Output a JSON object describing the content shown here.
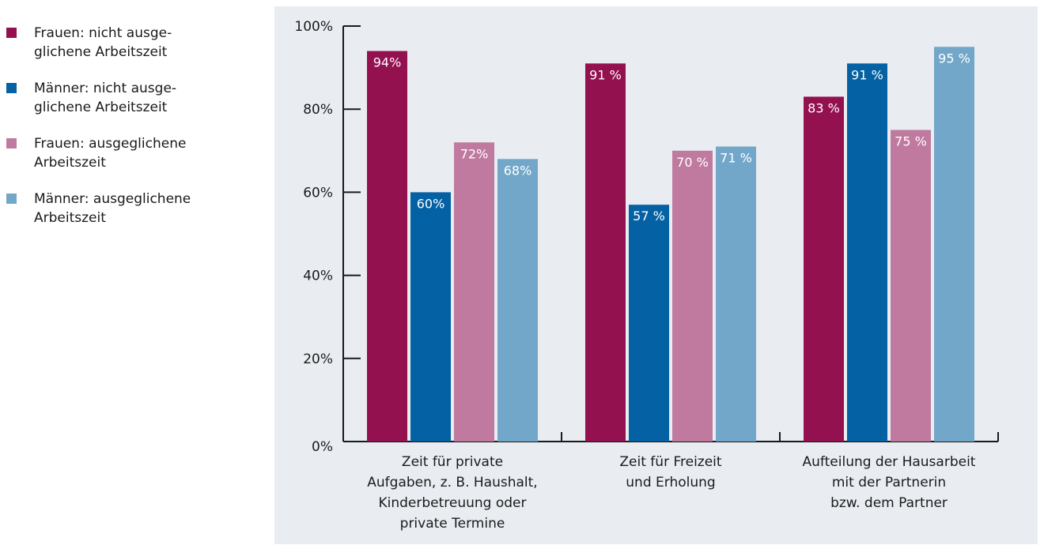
{
  "chart_data": {
    "type": "bar",
    "title": "",
    "xlabel": "",
    "ylabel": "",
    "ylim": [
      0,
      100
    ],
    "yticks": [
      "0%",
      "20%",
      "40%",
      "60%",
      "80%",
      "100%"
    ],
    "categories": [
      "Zeit für private\nAufgaben, z. B. Haushalt,\nKinderbetreuung oder\nprivate Termine",
      "Zeit für Freizeit\nund Erholung",
      "Aufteilung der Hausarbeit\nmit der Partnerin\nbzw. dem Partner"
    ],
    "series": [
      {
        "name": "Frauen: nicht ausge-\nglichene Arbeitszeit",
        "color": "#93114f",
        "values": [
          94,
          91,
          83
        ],
        "labels": [
          "94%",
          "91 %",
          "83 %"
        ]
      },
      {
        "name": "Männer: nicht ausge-\nglichene Arbeitszeit",
        "color": "#0461a3",
        "values": [
          60,
          57,
          91
        ],
        "labels": [
          "60%",
          "57 %",
          "91 %"
        ]
      },
      {
        "name": "Frauen: ausgeglichene\nArbeitszeit",
        "color": "#c07a9f",
        "values": [
          72,
          70,
          75
        ],
        "labels": [
          "72%",
          "70 %",
          "75 %"
        ]
      },
      {
        "name": "Männer: ausgeglichene\nArbeitszeit",
        "color": "#72a7ca",
        "values": [
          68,
          71,
          95
        ],
        "labels": [
          "68%",
          "71 %",
          "95 %"
        ]
      }
    ],
    "legend_position": "left",
    "grid": false
  }
}
